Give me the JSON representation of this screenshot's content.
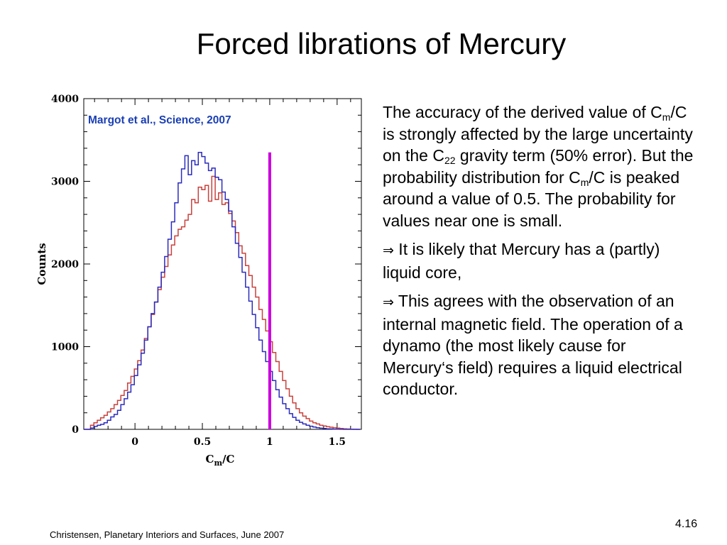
{
  "slide": {
    "title": "Forced librations of Mercury",
    "footer": "Christensen, Planetary Interiors and Surfaces, June 2007",
    "number": "4.16"
  },
  "body_text": {
    "p1": {
      "a": "The accuracy of the derived value of C",
      "sub1": "m",
      "b": "/C is strongly affected by the large uncertainty on the C",
      "sub2": "22",
      "c": " gravity term (50% error). But the probability distribution for C",
      "sub3": "m",
      "d": "/C is peaked around a value of 0.5. The probability for values near one is small."
    },
    "p2": {
      "arrow": "⇒",
      "text": " It is likely that Mercury has a (partly) liquid core,"
    },
    "p3": {
      "arrow": "⇒",
      "text": " This agrees with the observation of an internal magnetic field. The operation of a dynamo (the most likely cause for Mercury‘s field) requires a liquid electrical conductor."
    }
  },
  "chart_data": {
    "type": "histogram",
    "citation": "Margot et al., Science, 2007",
    "ylabel": "Counts",
    "xlabel_main": "C",
    "xlabel_sub": "m",
    "xlabel_tail": "/C",
    "xlim": [
      -0.38,
      1.68
    ],
    "ylim": [
      0,
      4000
    ],
    "x_ticks": [
      0,
      0.5,
      1,
      1.5
    ],
    "x_tick_labels": [
      "0",
      "0.5",
      "1",
      "1.5"
    ],
    "y_ticks": [
      0,
      1000,
      2000,
      3000,
      4000
    ],
    "y_tick_labels": [
      "0",
      "1000",
      "2000",
      "3000",
      "4000"
    ],
    "bin_start": -0.38,
    "bin_width": 0.025,
    "vertical_line": {
      "x": 1.0,
      "y_top": 3350,
      "color": "#cc00dd"
    },
    "colors": {
      "blue": "#2b2bbd",
      "red": "#c8413c",
      "citation": "#1a3fb5",
      "axis": "#000000"
    },
    "series": [
      {
        "color": "blue",
        "values": [
          0,
          0,
          15,
          35,
          50,
          60,
          80,
          110,
          150,
          180,
          230,
          300,
          370,
          450,
          540,
          650,
          780,
          920,
          1080,
          1240,
          1400,
          1540,
          1720,
          1900,
          2090,
          2300,
          2510,
          2740,
          2980,
          3150,
          3310,
          3080,
          3250,
          3200,
          3350,
          3300,
          3220,
          3130,
          3160,
          3050,
          3020,
          2870,
          2780,
          2640,
          2450,
          2250,
          2080,
          1900,
          1720,
          1550,
          1390,
          1230,
          1080,
          940,
          820,
          700,
          590,
          480,
          390,
          310,
          250,
          190,
          145,
          110,
          85,
          65,
          50,
          38,
          28,
          20,
          14,
          10,
          7,
          5,
          3,
          2,
          1,
          0,
          0,
          0,
          0,
          0
        ]
      },
      {
        "color": "red",
        "values": [
          0,
          0,
          50,
          80,
          110,
          140,
          170,
          210,
          250,
          300,
          350,
          410,
          470,
          560,
          640,
          730,
          830,
          960,
          1100,
          1240,
          1390,
          1540,
          1690,
          1840,
          1970,
          2110,
          2230,
          2340,
          2420,
          2450,
          2530,
          2600,
          2780,
          2740,
          2930,
          2900,
          2950,
          2760,
          3060,
          2780,
          2860,
          2720,
          2740,
          2610,
          2520,
          2380,
          2220,
          2130,
          1980,
          1860,
          1720,
          1600,
          1450,
          1330,
          1190,
          1060,
          930,
          820,
          700,
          590,
          490,
          400,
          320,
          250,
          200,
          160,
          130,
          100,
          80,
          65,
          50,
          40,
          32,
          26,
          20,
          15,
          10,
          6,
          4,
          2,
          1,
          0
        ]
      }
    ]
  }
}
